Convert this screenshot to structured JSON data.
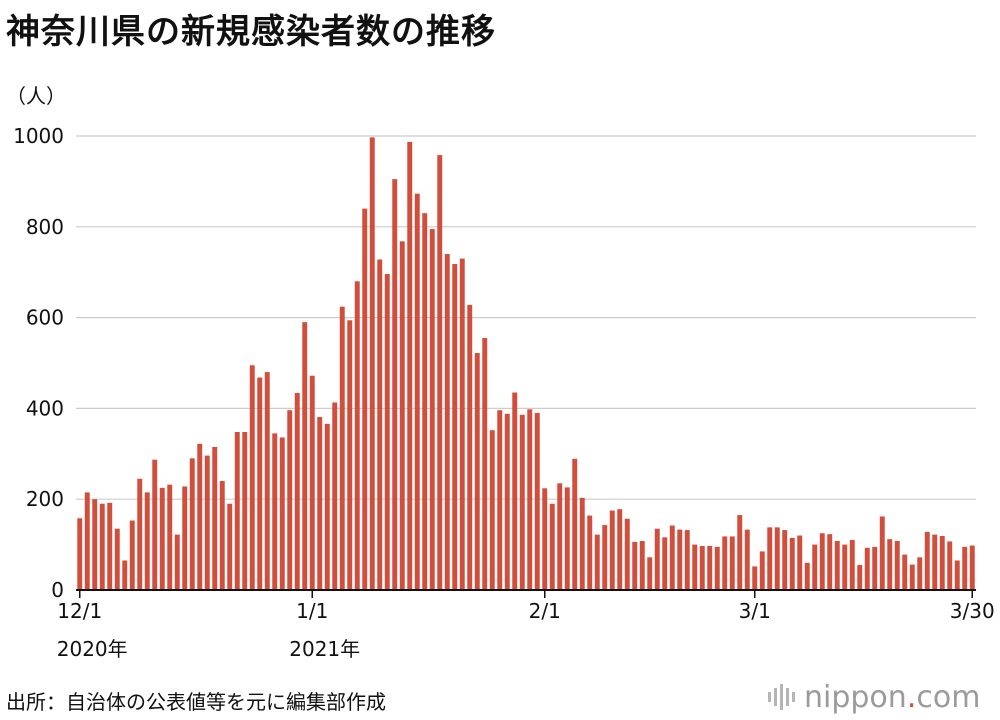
{
  "title": "神奈川県の新規感染者数の推移",
  "unit_label": "（人）",
  "source": "出所：自治体の公表値等を元に編集部作成",
  "logo": {
    "name": "nippon",
    "dot": ".",
    "suffix": "com"
  },
  "colors": {
    "bar": "#d24e3c",
    "grid": "#cccccc",
    "axis": "#111111",
    "logo": "#9b9b9b"
  },
  "chart_data": {
    "type": "bar",
    "title": "神奈川県の新規感染者数の推移",
    "xlabel": "",
    "ylabel": "（人）",
    "ylim": [
      0,
      1000
    ],
    "yticks": [
      0,
      200,
      400,
      600,
      800,
      1000
    ],
    "grid": true,
    "x_tick_labels": [
      {
        "index": 0,
        "label": "12/1",
        "year": "2020年"
      },
      {
        "index": 31,
        "label": "1/1",
        "year": "2021年"
      },
      {
        "index": 62,
        "label": "2/1",
        "year": ""
      },
      {
        "index": 90,
        "label": "3/1",
        "year": ""
      },
      {
        "index": 119,
        "label": "3/30",
        "year": ""
      }
    ],
    "categories": [
      "12/1",
      "12/2",
      "12/3",
      "12/4",
      "12/5",
      "12/6",
      "12/7",
      "12/8",
      "12/9",
      "12/10",
      "12/11",
      "12/12",
      "12/13",
      "12/14",
      "12/15",
      "12/16",
      "12/17",
      "12/18",
      "12/19",
      "12/20",
      "12/21",
      "12/22",
      "12/23",
      "12/24",
      "12/25",
      "12/26",
      "12/27",
      "12/28",
      "12/29",
      "12/30",
      "12/31",
      "1/1",
      "1/2",
      "1/3",
      "1/4",
      "1/5",
      "1/6",
      "1/7",
      "1/8",
      "1/9",
      "1/10",
      "1/11",
      "1/12",
      "1/13",
      "1/14",
      "1/15",
      "1/16",
      "1/17",
      "1/18",
      "1/19",
      "1/20",
      "1/21",
      "1/22",
      "1/23",
      "1/24",
      "1/25",
      "1/26",
      "1/27",
      "1/28",
      "1/29",
      "1/30",
      "1/31",
      "2/1",
      "2/2",
      "2/3",
      "2/4",
      "2/5",
      "2/6",
      "2/7",
      "2/8",
      "2/9",
      "2/10",
      "2/11",
      "2/12",
      "2/13",
      "2/14",
      "2/15",
      "2/16",
      "2/17",
      "2/18",
      "2/19",
      "2/20",
      "2/21",
      "2/22",
      "2/23",
      "2/24",
      "2/25",
      "2/26",
      "2/27",
      "2/28",
      "3/1",
      "3/2",
      "3/3",
      "3/4",
      "3/5",
      "3/6",
      "3/7",
      "3/8",
      "3/9",
      "3/10",
      "3/11",
      "3/12",
      "3/13",
      "3/14",
      "3/15",
      "3/16",
      "3/17",
      "3/18",
      "3/19",
      "3/20",
      "3/21",
      "3/22",
      "3/23",
      "3/24",
      "3/25",
      "3/26",
      "3/27",
      "3/28",
      "3/29",
      "3/30"
    ],
    "series": [
      {
        "values": [
          158,
          215,
          200,
          190,
          192,
          135,
          65,
          153,
          245,
          215,
          287,
          225,
          232,
          122,
          228,
          290,
          322,
          296,
          315,
          240,
          190,
          348,
          348,
          495,
          468,
          480,
          345,
          336,
          396,
          434,
          590,
          472,
          381,
          366,
          413,
          624,
          594,
          680,
          840,
          997,
          728,
          696,
          905,
          768,
          987,
          873,
          830,
          795,
          958,
          740,
          718,
          730,
          628,
          522,
          555,
          352,
          396,
          388,
          435,
          386,
          398,
          390,
          224,
          190,
          235,
          226,
          289,
          203,
          164,
          122,
          143,
          175,
          178,
          157,
          106,
          108,
          72,
          135,
          116,
          142,
          133,
          132,
          100,
          97,
          97,
          95,
          118,
          118,
          165,
          133,
          52,
          85,
          138,
          138,
          132,
          115,
          120,
          60,
          100,
          125,
          123,
          108,
          100,
          110,
          55,
          93,
          95,
          162,
          112,
          108,
          78,
          56,
          72,
          128,
          122,
          119,
          107,
          65,
          95,
          98
        ]
      }
    ]
  }
}
